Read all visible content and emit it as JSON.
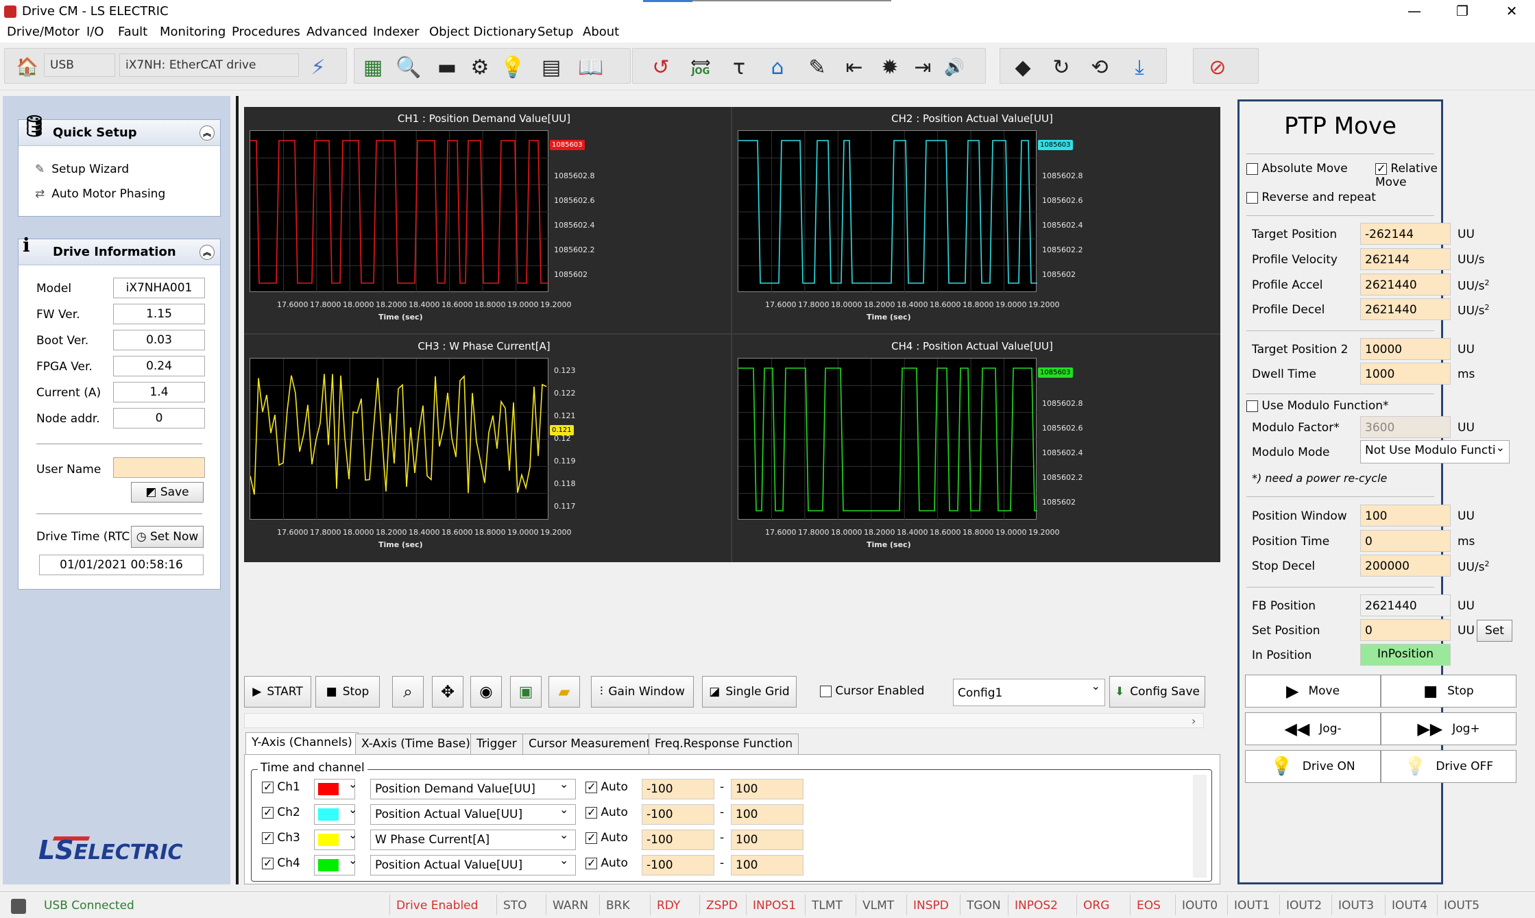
{
  "window": {
    "title": "Drive CM - LS ELECTRIC",
    "min": "—",
    "max": "❐",
    "close": "✕"
  },
  "menu": [
    "Drive/Motor",
    "I/O",
    "Fault",
    "Monitoring",
    "Procedures",
    "Advanced",
    "Indexer",
    "Object Dictionary",
    "Setup",
    "About"
  ],
  "toolbar": {
    "conn": "USB",
    "drive": "iX7NH: EtherCAT drive",
    "jog": "JOG"
  },
  "quick_setup": {
    "title": "Quick Setup",
    "items": [
      "Setup Wizard",
      "Auto Motor Phasing"
    ]
  },
  "drive_info": {
    "title": "Drive Information",
    "fields": [
      {
        "label": "Model",
        "value": "iX7NHA001"
      },
      {
        "label": "FW Ver.",
        "value": "1.15"
      },
      {
        "label": "Boot Ver.",
        "value": "0.03"
      },
      {
        "label": "FPGA Ver.",
        "value": "0.24"
      },
      {
        "label": "Current (A)",
        "value": "1.4"
      },
      {
        "label": "Node addr.",
        "value": "0"
      }
    ],
    "user_name_label": "User Name",
    "user_name_value": "",
    "save": "Save",
    "drive_time_label": "Drive Time (RTC)",
    "set_now": "Set Now",
    "drive_time": "01/01/2021 00:58:16"
  },
  "logo": {
    "ls": "LS",
    "electric": "ELECTRIC"
  },
  "charts": {
    "ch1": {
      "title": "CH1 : Position Demand Value[UU]",
      "color": "#e81818",
      "marker": "1085603",
      "yticks": [
        "1085602.8",
        "1085602.6",
        "1085602.4",
        "1085602.2",
        "1085602"
      ],
      "xticks": [
        "17.6000",
        "17.8000",
        "18.0000",
        "18.2000",
        "18.4000",
        "18.6000",
        "18.8000",
        "19.0000",
        "19.2000"
      ],
      "xlabel": "Time (sec)"
    },
    "ch2": {
      "title": "CH2 : Position Actual Value[UU]",
      "color": "#2ee0e6",
      "marker": "1085603",
      "yticks": [
        "1085602.8",
        "1085602.6",
        "1085602.4",
        "1085602.2",
        "1085602"
      ],
      "xticks": [
        "17.6000",
        "17.8000",
        "18.0000",
        "18.2000",
        "18.4000",
        "18.6000",
        "18.8000",
        "19.0000",
        "19.2000"
      ],
      "xlabel": "Time (sec)"
    },
    "ch3": {
      "title": "CH3 : W Phase Current[A]",
      "color": "#f5e61a",
      "marker": "0.121",
      "yticks": [
        "0.123",
        "0.122",
        "0.121",
        "0.12",
        "0.119",
        "0.118",
        "0.117"
      ],
      "xticks": [
        "17.6000",
        "17.8000",
        "18.0000",
        "18.2000",
        "18.4000",
        "18.6000",
        "18.8000",
        "19.0000",
        "19.2000"
      ],
      "xlabel": "Time (sec)"
    },
    "ch4": {
      "title": "CH4 : Position Actual Value[UU]",
      "color": "#22dd22",
      "marker": "1085603",
      "yticks": [
        "1085602.8",
        "1085602.6",
        "1085602.4",
        "1085602.2",
        "1085602"
      ],
      "xticks": [
        "17.6000",
        "17.8000",
        "18.0000",
        "18.2000",
        "18.4000",
        "18.6000",
        "18.8000",
        "19.0000",
        "19.2000"
      ],
      "xlabel": "Time (sec)"
    }
  },
  "scope_controls": {
    "start": "START",
    "stop": "Stop",
    "gain_window": "Gain Window",
    "single_grid": "Single Grid",
    "cursor_enabled": "Cursor Enabled",
    "config": "Config1",
    "config_save": "Config Save"
  },
  "tabs": [
    "Y-Axis (Channels)",
    "X-Axis (Time Base)",
    "Trigger",
    "Cursor Measurement",
    "Freq.Response Function"
  ],
  "channels": {
    "group": "Time and channel",
    "auto": "Auto",
    "rows": [
      {
        "name": "Ch1",
        "color": "#ff0000",
        "signal": "Position Demand Value[UU]",
        "min": "-100",
        "max": "100"
      },
      {
        "name": "Ch2",
        "color": "#33ffff",
        "signal": "Position Actual Value[UU]",
        "min": "-100",
        "max": "100"
      },
      {
        "name": "Ch3",
        "color": "#ffff00",
        "signal": "W Phase Current[A]",
        "min": "-100",
        "max": "100"
      },
      {
        "name": "Ch4",
        "color": "#00ee00",
        "signal": "Position Actual Value[UU]",
        "min": "-100",
        "max": "100"
      }
    ]
  },
  "ptp": {
    "title": "PTP Move",
    "absolute": "Absolute Move",
    "relative": "Relative Move",
    "reverse": "Reverse and repeat",
    "target_position": {
      "label": "Target Position",
      "value": "-262144",
      "unit": "UU"
    },
    "profile_velocity": {
      "label": "Profile Velocity",
      "value": "262144",
      "unit": "UU/s"
    },
    "profile_accel": {
      "label": "Profile Accel",
      "value": "2621440",
      "unit": "UU/s",
      "sup": "2"
    },
    "profile_decel": {
      "label": "Profile Decel",
      "value": "2621440",
      "unit": "UU/s",
      "sup": "2"
    },
    "target_position2": {
      "label": "Target Position 2",
      "value": "10000",
      "unit": "UU"
    },
    "dwell_time": {
      "label": "Dwell Time",
      "value": "1000",
      "unit": "ms"
    },
    "use_modulo": "Use Modulo Function*",
    "modulo_factor": {
      "label": "Modulo Factor*",
      "value": "3600",
      "unit": "UU"
    },
    "modulo_mode": {
      "label": "Modulo Mode",
      "value": "Not Use Modulo Functi"
    },
    "note": "*) need a power re-cycle",
    "position_window": {
      "label": "Position Window",
      "value": "100",
      "unit": "UU"
    },
    "position_time": {
      "label": "Position Time",
      "value": "0",
      "unit": "ms"
    },
    "stop_decel": {
      "label": "Stop Decel",
      "value": "200000",
      "unit": "UU/s",
      "sup": "2"
    },
    "fb_position": {
      "label": "FB Position",
      "value": "2621440",
      "unit": "UU"
    },
    "set_position": {
      "label": "Set Position",
      "value": "0",
      "unit": "UU",
      "button": "Set"
    },
    "in_position": {
      "label": "In Position",
      "value": "InPosition"
    },
    "move": "Move",
    "stop": "Stop",
    "jog_minus": "Jog-",
    "jog_plus": "Jog+",
    "drive_on": "Drive ON",
    "drive_off": "Drive OFF"
  },
  "status": {
    "connection": "USB Connected",
    "flags": [
      {
        "t": "Drive Enabled",
        "c": "red"
      },
      {
        "t": "STO",
        "c": "gray"
      },
      {
        "t": "WARN",
        "c": "gray"
      },
      {
        "t": "BRK",
        "c": "gray"
      },
      {
        "t": "RDY",
        "c": "red"
      },
      {
        "t": "ZSPD",
        "c": "red"
      },
      {
        "t": "INPOS1",
        "c": "red"
      },
      {
        "t": "TLMT",
        "c": "gray"
      },
      {
        "t": "VLMT",
        "c": "gray"
      },
      {
        "t": "INSPD",
        "c": "red"
      },
      {
        "t": "TGON",
        "c": "gray"
      },
      {
        "t": "INPOS2",
        "c": "red"
      },
      {
        "t": "ORG",
        "c": "red"
      },
      {
        "t": "EOS",
        "c": "red"
      },
      {
        "t": "IOUT0",
        "c": "gray"
      },
      {
        "t": "IOUT1",
        "c": "gray"
      },
      {
        "t": "IOUT2",
        "c": "gray"
      },
      {
        "t": "IOUT3",
        "c": "gray"
      },
      {
        "t": "IOUT4",
        "c": "gray"
      },
      {
        "t": "IOUT5",
        "c": "gray"
      }
    ]
  }
}
